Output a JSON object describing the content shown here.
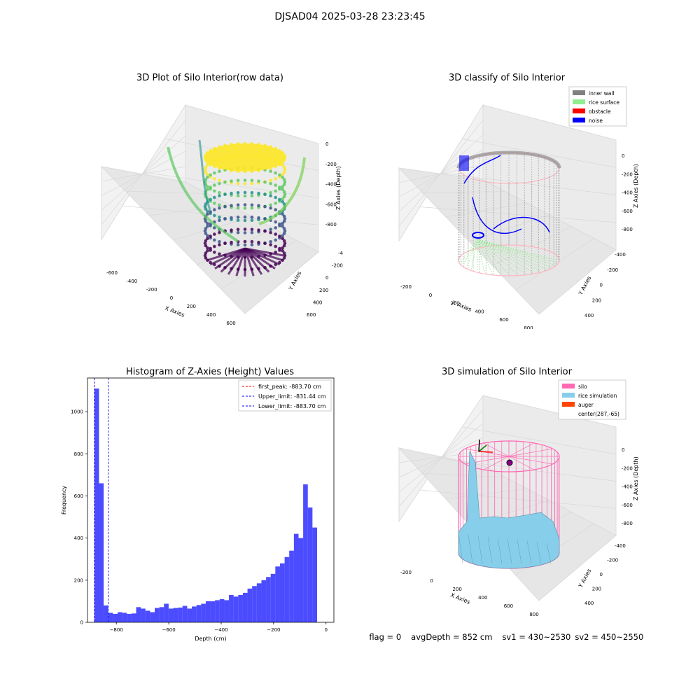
{
  "suptitle": "DJSAD04 2025-03-28 23:23:45",
  "panels": {
    "raw": {
      "title": "3D Plot of Silo Interior(row data)",
      "xlabel": "X Axies",
      "ylabel": "Y Axies",
      "zlabel": "Z Axies (Depth)",
      "xticks": [
        "-600",
        "-400",
        "-200",
        "0",
        "200",
        "400",
        "600"
      ],
      "yticks": [
        "-400",
        "-200",
        "0",
        "200",
        "400",
        "600"
      ],
      "zticks": [
        "0",
        "-200",
        "-400",
        "-600",
        "-800"
      ]
    },
    "classify": {
      "title": "3D classify of Silo Interior",
      "xlabel": "X Axies",
      "ylabel": "Y Axies",
      "zlabel": "Z Axies (Depth)",
      "xticks": [
        "-200",
        "0",
        "200",
        "400",
        "600",
        "800"
      ],
      "yticks": [
        "-400",
        "-200",
        "0",
        "200",
        "400"
      ],
      "zticks": [
        "0",
        "-200",
        "-400",
        "-600",
        "-800"
      ],
      "legend": [
        {
          "label": "inner wall",
          "color": "#808080"
        },
        {
          "label": "rice surface",
          "color": "#90ee90"
        },
        {
          "label": "obstacle",
          "color": "#ff0000"
        },
        {
          "label": "noise",
          "color": "#0000ff"
        }
      ]
    },
    "simulation": {
      "title": "3D simulation of Silo Interior",
      "xlabel": "X Axies",
      "ylabel": "Y Axies",
      "zlabel": "Z Axies (Depth)",
      "xticks": [
        "-200",
        "0",
        "200",
        "400",
        "600",
        "800"
      ],
      "yticks": [
        "-400",
        "-200",
        "0",
        "200",
        "400"
      ],
      "zticks": [
        "0",
        "-200",
        "-400",
        "-600",
        "-800"
      ],
      "legend": [
        {
          "label": "silo",
          "color": "#ff69b4"
        },
        {
          "label": "rice simulation",
          "color": "#87ceeb"
        },
        {
          "label": "auger",
          "color": "#ff4500"
        },
        {
          "label": "center(287,-65)",
          "color": ""
        }
      ]
    }
  },
  "chart_data": {
    "type": "bar",
    "title": "Histogram of Z-Axies (Height) Values",
    "xlabel": "Depth (cm)",
    "ylabel": "Frequency",
    "xlim": [
      -910,
      30
    ],
    "ylim": [
      0,
      1160
    ],
    "xticks": [
      -800,
      -600,
      -400,
      -200,
      0
    ],
    "yticks": [
      0,
      200,
      400,
      600,
      800,
      1000
    ],
    "bin_width": 17.7,
    "bin_start": -883.7,
    "values": [
      1110,
      660,
      80,
      45,
      40,
      48,
      45,
      40,
      42,
      72,
      65,
      55,
      48,
      68,
      72,
      88,
      65,
      68,
      70,
      78,
      65,
      75,
      82,
      88,
      100,
      100,
      105,
      110,
      105,
      130,
      122,
      130,
      140,
      160,
      172,
      185,
      200,
      215,
      230,
      265,
      280,
      310,
      340,
      420,
      400,
      655,
      545,
      450
    ],
    "bar_color": "#0000ff",
    "vlines": [
      {
        "x": -883.7,
        "label": "first_peak: -883.70 cm",
        "color": "#ff0000"
      },
      {
        "x": -831.44,
        "label": "Upper_limit: -831.44 cm",
        "color": "#0000ff"
      },
      {
        "x": -883.7,
        "label": "Lower_limit: -883.70 cm",
        "color": "#0000ff"
      }
    ],
    "legend_position": "top-right"
  },
  "footer": {
    "flag": "flag = 0",
    "avg": "avgDepth = 852 cm",
    "sv1": "sv1 = 430~2530",
    "sv2": "sv2 = 450~2550"
  }
}
